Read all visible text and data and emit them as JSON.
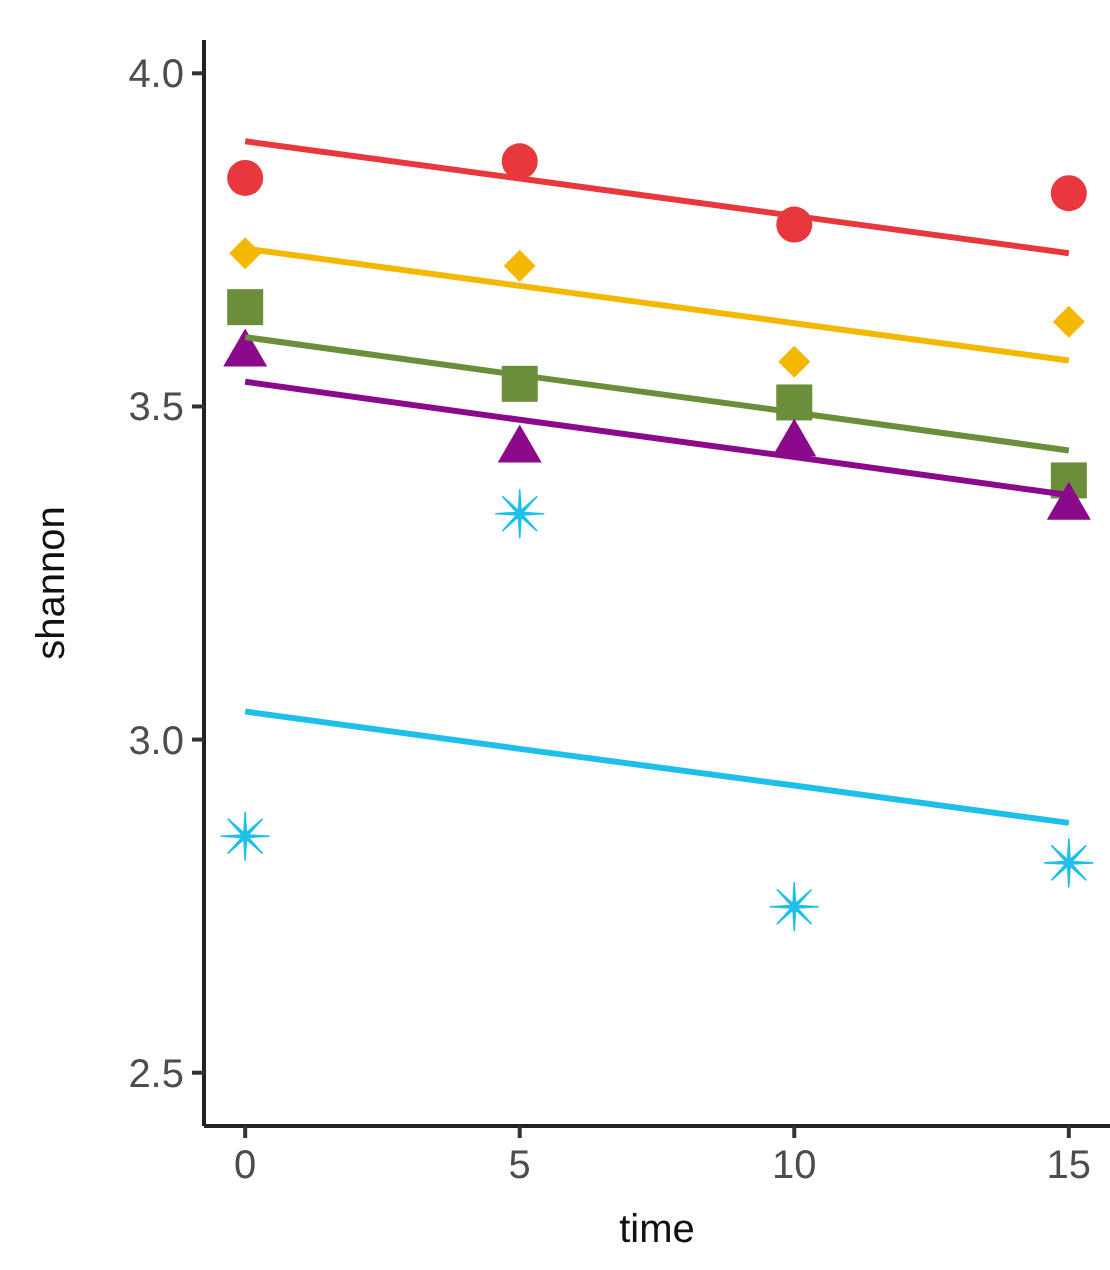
{
  "chart_data": {
    "type": "scatter",
    "xlabel": "time",
    "ylabel": "shannon",
    "xlim": [
      -0.75,
      15.75
    ],
    "ylim": [
      2.42,
      4.05
    ],
    "xticks": [
      0,
      5,
      10,
      15
    ],
    "yticks": [
      {
        "value": 2.5,
        "label": "2.5"
      },
      {
        "value": 3,
        "label": "3.0"
      },
      {
        "value": 3.5,
        "label": "3.5"
      },
      {
        "value": 4,
        "label": "4.0"
      }
    ],
    "x": [
      0,
      5,
      10,
      15
    ],
    "series": [
      {
        "color": "#e8383d",
        "marker": "circle",
        "values": [
          3.843,
          3.868,
          3.773,
          3.82
        ]
      },
      {
        "color": "#f5b800",
        "marker": "diamond",
        "values": [
          3.73,
          3.711,
          3.567,
          3.627
        ]
      },
      {
        "color": "#6b8e3a",
        "marker": "square",
        "values": [
          3.649,
          3.534,
          3.506,
          3.389
        ]
      },
      {
        "color": "#8b0a8b",
        "marker": "triangle",
        "values": [
          3.584,
          3.44,
          3.449,
          3.354
        ]
      },
      {
        "color": "#1ec0ea",
        "marker": "cross",
        "values": [
          2.855,
          3.339,
          2.749,
          2.815
        ]
      },
      {
        "type": "line",
        "color": "#e8383d",
        "values": [
          3.898,
          3.842,
          3.786,
          3.73
        ]
      },
      {
        "type": "line",
        "color": "#f5b800",
        "values": [
          3.737,
          3.681,
          3.625,
          3.569
        ]
      },
      {
        "type": "line",
        "color": "#6b8e3a",
        "values": [
          3.604,
          3.547,
          3.491,
          3.434
        ]
      },
      {
        "type": "line",
        "color": "#8b0a8b",
        "values": [
          3.537,
          3.48,
          3.424,
          3.367
        ]
      },
      {
        "type": "line",
        "color": "#1ec0ea",
        "values": [
          3.042,
          2.986,
          2.931,
          2.875
        ]
      }
    ]
  }
}
